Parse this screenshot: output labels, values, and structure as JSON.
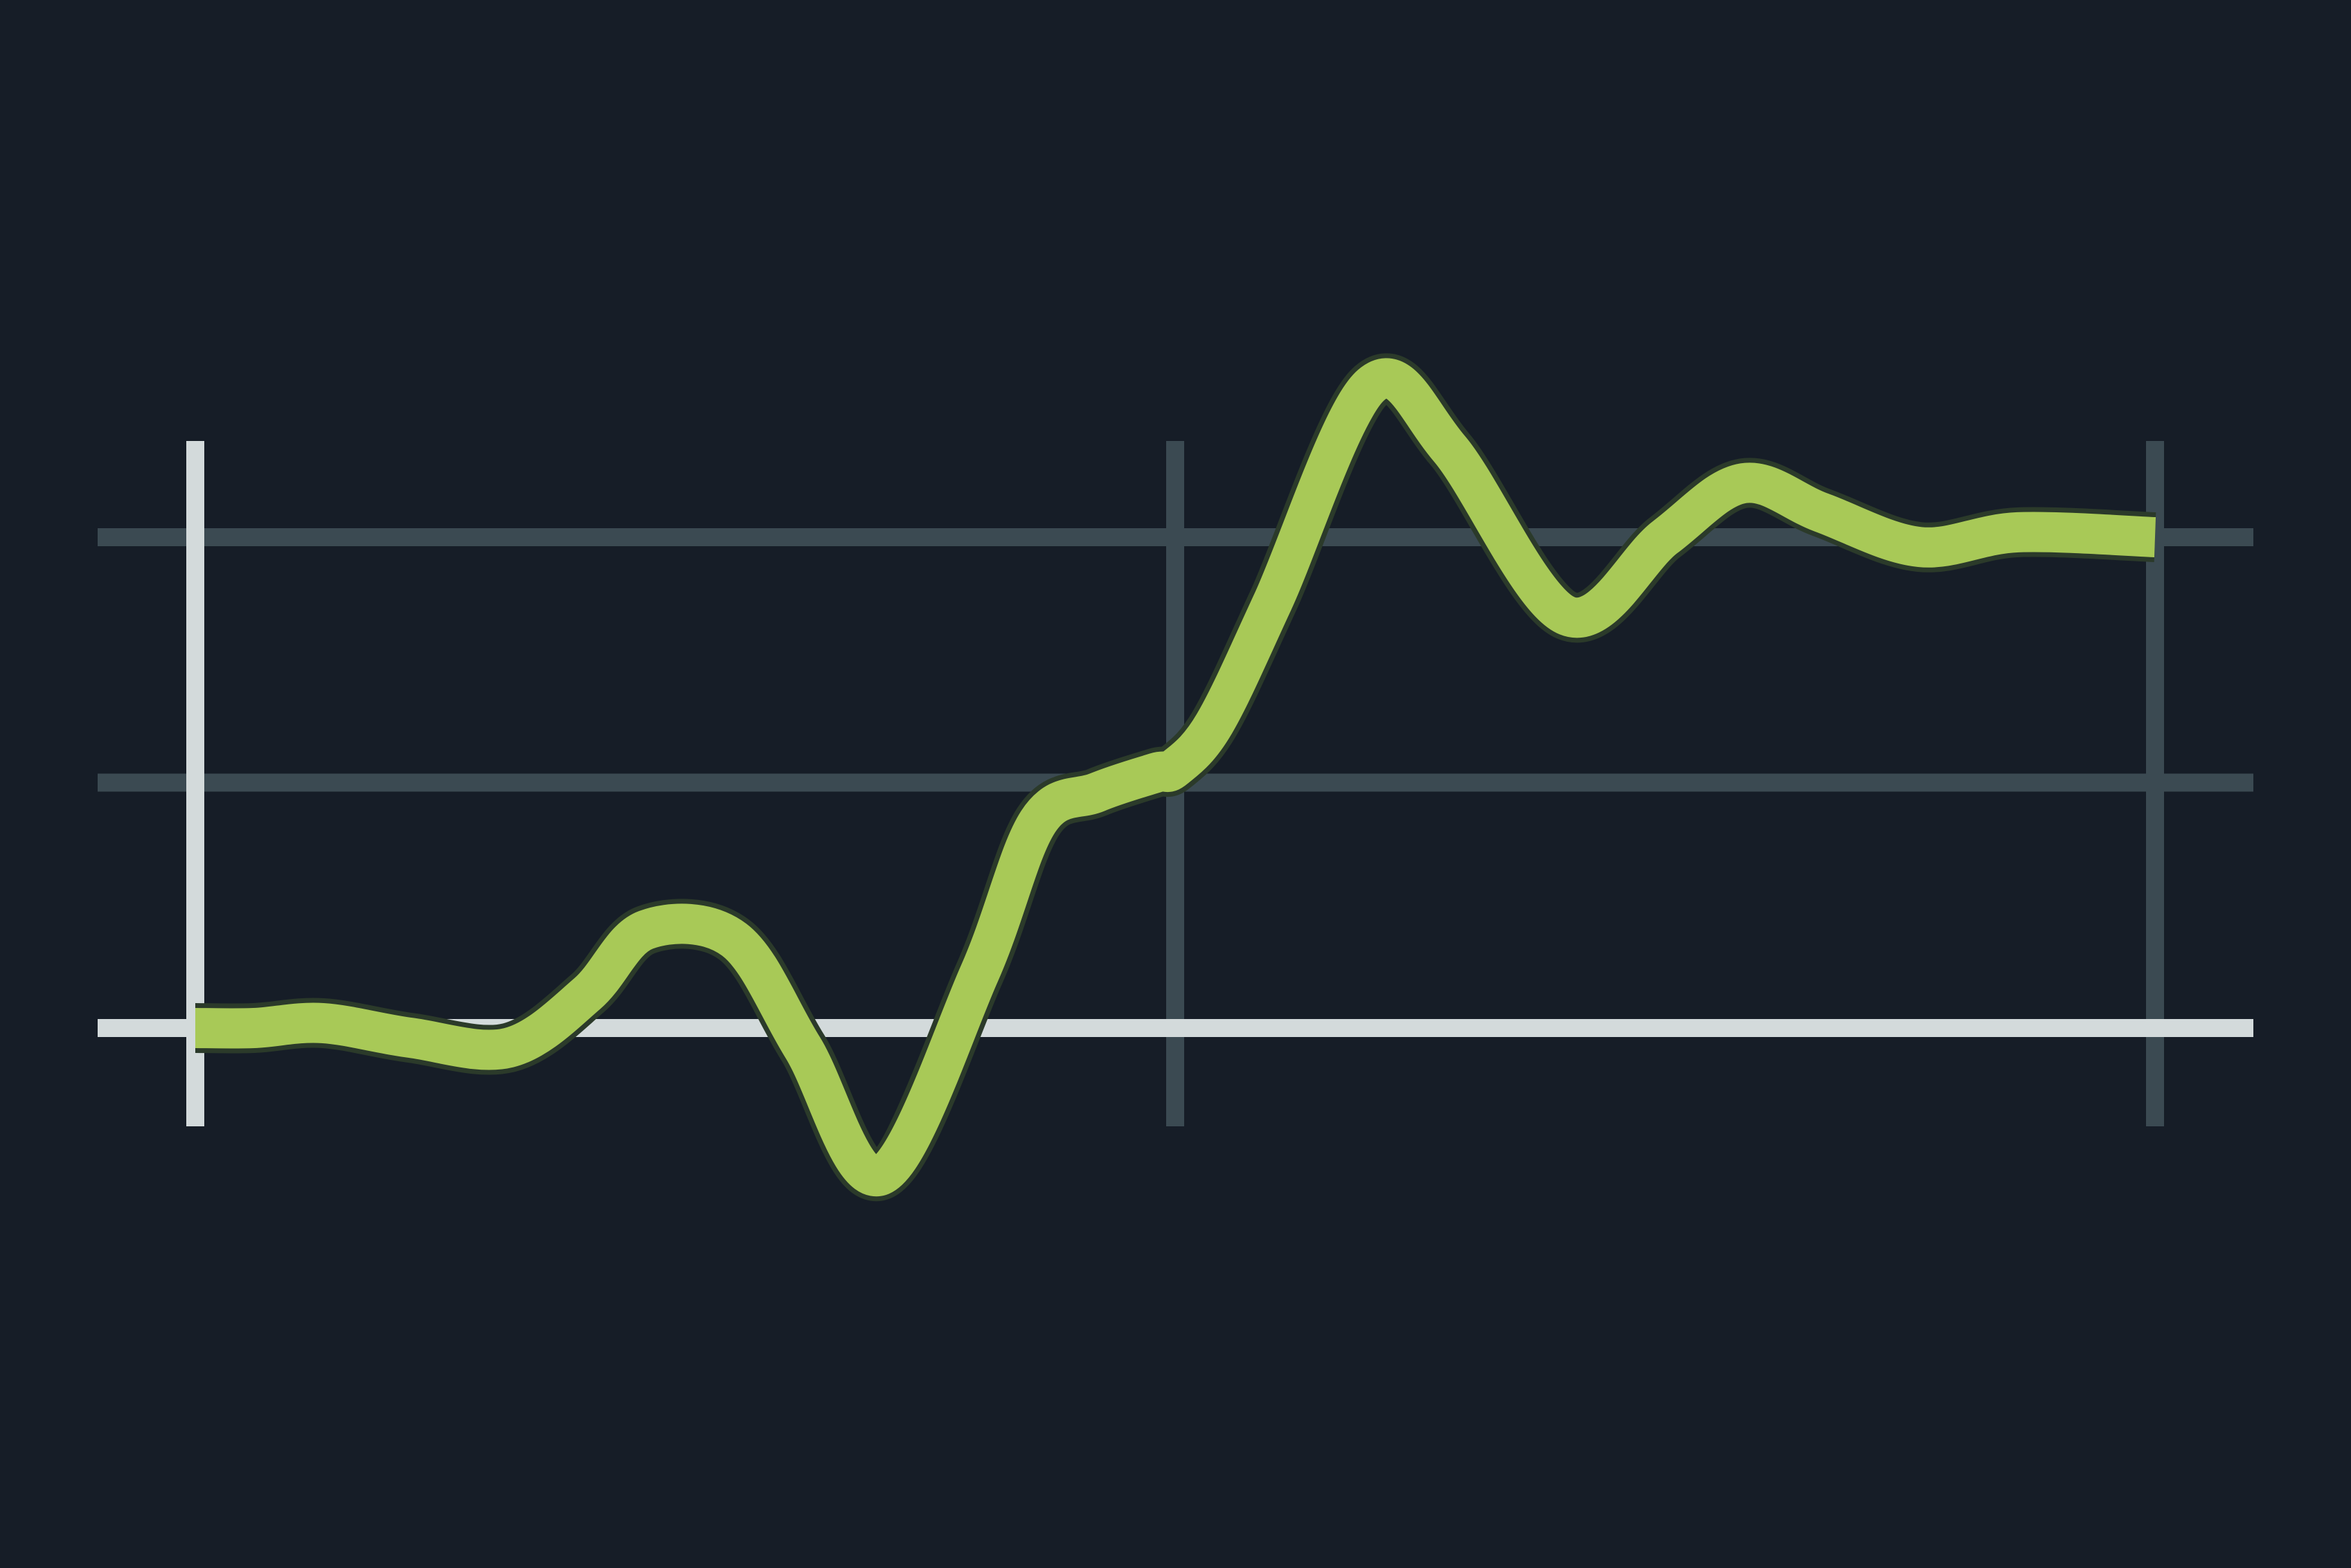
{
  "chart_data": {
    "type": "line",
    "title": "",
    "xlabel": "",
    "ylabel": "",
    "xlim": [
      0,
      1
    ],
    "ylim": [
      0,
      1
    ],
    "grid": true,
    "x_gridlines": [
      0,
      0.5,
      1
    ],
    "y_gridlines": [
      0,
      0.5,
      1
    ],
    "series": [
      {
        "x": [
          0,
          0.03,
          0.065,
          0.11,
          0.16,
          0.2,
          0.23,
          0.275,
          0.31,
          0.35,
          0.4,
          0.43,
          0.46,
          0.49,
          0.5,
          0.52,
          0.55,
          0.6,
          0.64,
          0.7,
          0.75,
          0.79,
          0.83,
          0.88,
          0.93,
          1
        ],
        "values": [
          0,
          0.0,
          0.01,
          -0.02,
          -0.04,
          0.07,
          0.2,
          0.18,
          -0.04,
          -0.3,
          0.11,
          0.42,
          0.48,
          0.52,
          0.53,
          0.62,
          0.87,
          1.31,
          1.18,
          0.84,
          1.0,
          1.11,
          1.05,
          0.98,
          1.01,
          1.0
        ]
      }
    ]
  },
  "style": {
    "background": "#161d27",
    "grid_color": "#3b4a52",
    "axis_color": "#d3dadb",
    "line_color": "#a8c957"
  }
}
